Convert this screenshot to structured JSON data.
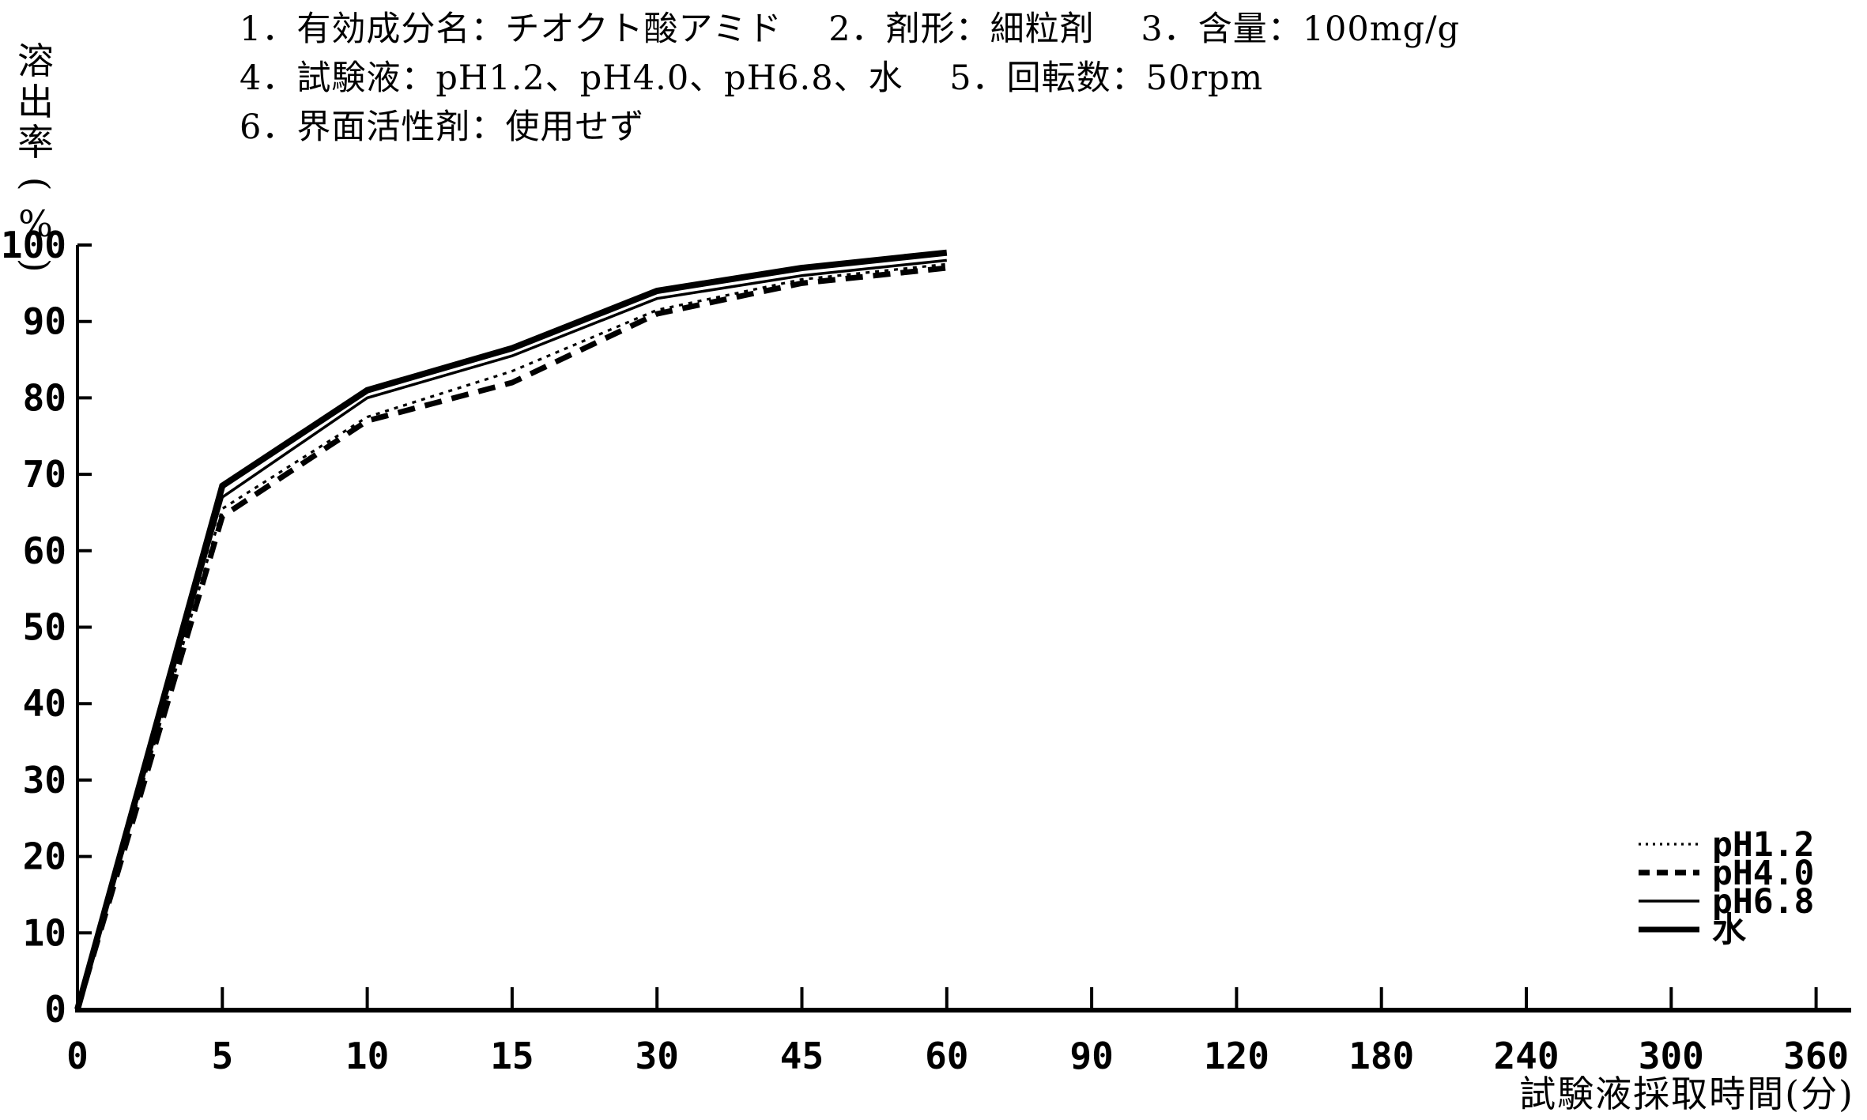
{
  "header": {
    "line1": "1．有効成分名：チオクト酸アミド　 2．剤形：細粒剤　 3．含量：100mg/g",
    "line2": "4．試験液：pH1.2、pH4.0、pH6.8、水　 5．回転数：50rpm",
    "line3": "6．界面活性剤：使用せず"
  },
  "chart_data": {
    "type": "line",
    "title": "",
    "xlabel": "試験液採取時間(分)",
    "ylabel": "溶出率(%)",
    "x_categories": [
      0,
      5,
      10,
      15,
      30,
      45,
      60,
      90,
      120,
      180,
      240,
      300,
      360
    ],
    "x_tick_labels": [
      "0",
      "5",
      "10",
      "15",
      "30",
      "45",
      "60",
      "90",
      "120",
      "180",
      "240",
      "300",
      "360"
    ],
    "y_ticks": [
      0,
      10,
      20,
      30,
      40,
      50,
      60,
      70,
      80,
      90,
      100
    ],
    "y_tick_labels": [
      "0",
      "10",
      "20",
      "30",
      "40",
      "50",
      "60",
      "70",
      "80",
      "90",
      "100"
    ],
    "ylim": [
      0,
      100
    ],
    "grid": false,
    "legend_position": "right-middle",
    "colors": {
      "line": "#000000",
      "background": "#ffffff"
    },
    "series": [
      {
        "name": "pH1.2",
        "style": "dotted",
        "stroke_width": 3.2,
        "dash": "5 7",
        "x": [
          0,
          5,
          10,
          15,
          30,
          45,
          60
        ],
        "values": [
          0,
          65.5,
          77.5,
          83.5,
          91.5,
          95.5,
          97.5
        ]
      },
      {
        "name": "pH4.0",
        "style": "dashed",
        "stroke_width": 7,
        "dash": "22 13",
        "x": [
          0,
          5,
          10,
          15,
          30,
          45,
          60
        ],
        "values": [
          0,
          64.5,
          77,
          82,
          91,
          95,
          97
        ]
      },
      {
        "name": "pH6.8",
        "style": "solid-thin",
        "stroke_width": 3.5,
        "dash": "",
        "x": [
          0,
          5,
          10,
          15,
          30,
          45,
          60
        ],
        "values": [
          0,
          67,
          80,
          85.5,
          93,
          96,
          98
        ]
      },
      {
        "name": "水",
        "style": "solid-thick",
        "stroke_width": 8,
        "dash": "",
        "x": [
          0,
          5,
          10,
          15,
          30,
          45,
          60
        ],
        "values": [
          0,
          68.5,
          81,
          86.5,
          94,
          97,
          99
        ]
      }
    ],
    "legend_dashes": [
      "3 6",
      "14 9",
      "",
      ""
    ]
  }
}
